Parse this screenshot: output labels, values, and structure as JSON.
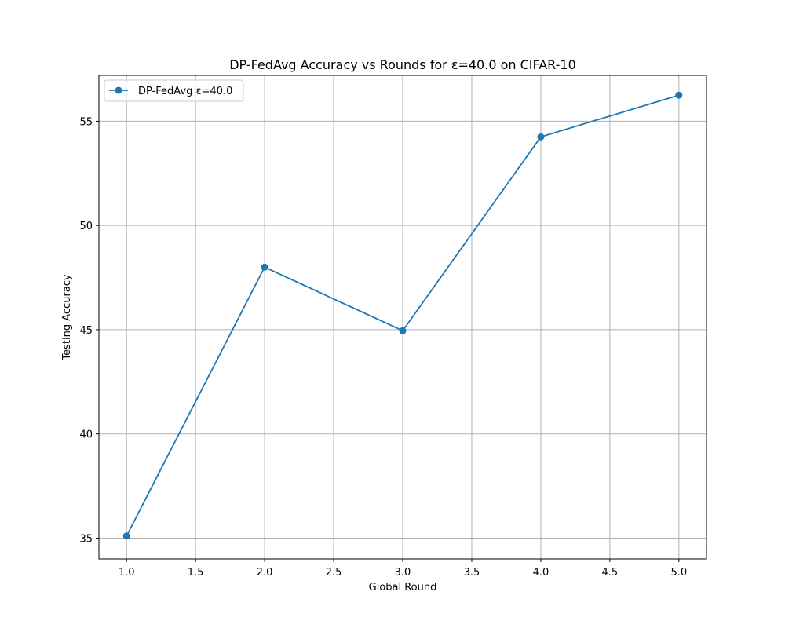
{
  "chart_data": {
    "type": "line",
    "title": "DP-FedAvg Accuracy vs Rounds for ε=40.0 on CIFAR-10",
    "xlabel": "Global Round",
    "ylabel": "Testing Accuracy",
    "xlim": [
      0.8,
      5.2
    ],
    "ylim": [
      34.0,
      57.2
    ],
    "xticks": [
      1.0,
      1.5,
      2.0,
      2.5,
      3.0,
      3.5,
      4.0,
      4.5,
      5.0
    ],
    "xtick_labels": [
      "1.0",
      "1.5",
      "2.0",
      "2.5",
      "3.0",
      "3.5",
      "4.0",
      "4.5",
      "5.0"
    ],
    "yticks": [
      35,
      40,
      45,
      50,
      55
    ],
    "ytick_labels": [
      "35",
      "40",
      "45",
      "50",
      "55"
    ],
    "grid": true,
    "legend_position": "top-left",
    "series": [
      {
        "name": "DP-FedAvg ε=40.0",
        "color": "#1f77b4",
        "marker": "circle",
        "x": [
          1,
          2,
          3,
          4,
          5
        ],
        "y": [
          35.1,
          48.0,
          44.95,
          54.25,
          56.25
        ]
      }
    ]
  }
}
